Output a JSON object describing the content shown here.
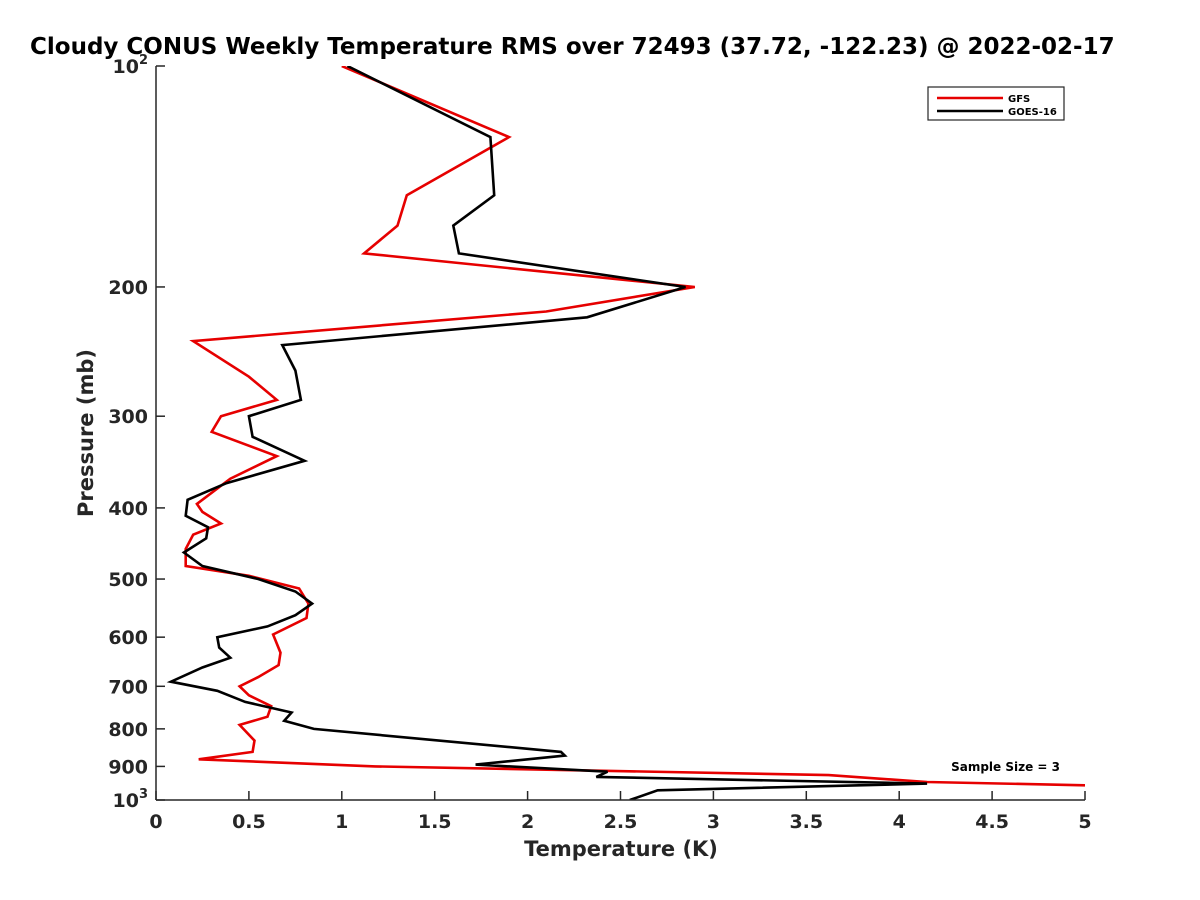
{
  "chart_data": {
    "type": "line",
    "title": "Cloudy CONUS Weekly Temperature RMS over 72493 (37.72, -122.23) @ 2022-02-17",
    "xlabel": "Temperature (K)",
    "ylabel": "Pressure (mb)",
    "xlim": [
      0,
      5
    ],
    "ylim": [
      100,
      1000
    ],
    "yscale": "log",
    "y_reversed": true,
    "grid": false,
    "legend_position": "top-right",
    "x_ticks": [
      0,
      0.5,
      1,
      1.5,
      2,
      2.5,
      3,
      3.5,
      4,
      4.5,
      5
    ],
    "x_tick_labels": [
      "0",
      "0.5",
      "1",
      "1.5",
      "2",
      "2.5",
      "3",
      "3.5",
      "4",
      "4.5",
      "5"
    ],
    "y_ticks": [
      100,
      200,
      300,
      400,
      500,
      600,
      700,
      800,
      900,
      1000
    ],
    "y_tick_labels": [
      {
        "base": "10",
        "sup": "2"
      },
      {
        "base": "200",
        "sup": ""
      },
      {
        "base": "300",
        "sup": ""
      },
      {
        "base": "400",
        "sup": ""
      },
      {
        "base": "500",
        "sup": ""
      },
      {
        "base": "600",
        "sup": ""
      },
      {
        "base": "700",
        "sup": ""
      },
      {
        "base": "800",
        "sup": ""
      },
      {
        "base": "900",
        "sup": ""
      },
      {
        "base": "10",
        "sup": "3"
      }
    ],
    "annotation": "Sample Size = 3",
    "series": [
      {
        "name": "GFS",
        "color": "#e60000",
        "points": [
          [
            1.0,
            100
          ],
          [
            1.9,
            125
          ],
          [
            1.35,
            150
          ],
          [
            1.3,
            165
          ],
          [
            1.12,
            180
          ],
          [
            2.9,
            200
          ],
          [
            2.1,
            216
          ],
          [
            0.2,
            237
          ],
          [
            0.5,
            265
          ],
          [
            0.65,
            285
          ],
          [
            0.35,
            300
          ],
          [
            0.3,
            315
          ],
          [
            0.65,
            340
          ],
          [
            0.4,
            365
          ],
          [
            0.22,
            395
          ],
          [
            0.25,
            405
          ],
          [
            0.35,
            420
          ],
          [
            0.2,
            435
          ],
          [
            0.16,
            455
          ],
          [
            0.16,
            480
          ],
          [
            0.5,
            495
          ],
          [
            0.77,
            515
          ],
          [
            0.82,
            540
          ],
          [
            0.81,
            565
          ],
          [
            0.63,
            595
          ],
          [
            0.67,
            630
          ],
          [
            0.66,
            655
          ],
          [
            0.55,
            680
          ],
          [
            0.45,
            700
          ],
          [
            0.5,
            720
          ],
          [
            0.62,
            745
          ],
          [
            0.6,
            770
          ],
          [
            0.45,
            790
          ],
          [
            0.53,
            830
          ],
          [
            0.52,
            860
          ],
          [
            0.23,
            880
          ],
          [
            1.18,
            900
          ],
          [
            3.62,
            925
          ],
          [
            4.15,
            945
          ],
          [
            5.0,
            955
          ]
        ]
      },
      {
        "name": "GOES-16",
        "color": "#000000",
        "points": [
          [
            1.03,
            100
          ],
          [
            1.8,
            125
          ],
          [
            1.82,
            150
          ],
          [
            1.6,
            165
          ],
          [
            1.63,
            180
          ],
          [
            2.85,
            200
          ],
          [
            2.32,
            220
          ],
          [
            0.68,
            240
          ],
          [
            0.75,
            260
          ],
          [
            0.78,
            285
          ],
          [
            0.5,
            300
          ],
          [
            0.52,
            320
          ],
          [
            0.8,
            345
          ],
          [
            0.38,
            370
          ],
          [
            0.17,
            390
          ],
          [
            0.16,
            410
          ],
          [
            0.28,
            425
          ],
          [
            0.27,
            440
          ],
          [
            0.15,
            460
          ],
          [
            0.25,
            480
          ],
          [
            0.55,
            500
          ],
          [
            0.75,
            520
          ],
          [
            0.84,
            540
          ],
          [
            0.75,
            560
          ],
          [
            0.6,
            580
          ],
          [
            0.33,
            600
          ],
          [
            0.34,
            620
          ],
          [
            0.4,
            640
          ],
          [
            0.25,
            660
          ],
          [
            0.08,
            690
          ],
          [
            0.33,
            710
          ],
          [
            0.48,
            735
          ],
          [
            0.73,
            760
          ],
          [
            0.69,
            780
          ],
          [
            0.85,
            800
          ],
          [
            2.18,
            860
          ],
          [
            2.2,
            870
          ],
          [
            1.72,
            895
          ],
          [
            2.43,
            915
          ],
          [
            2.37,
            930
          ],
          [
            4.15,
            950
          ],
          [
            2.7,
            970
          ],
          [
            2.55,
            1000
          ]
        ]
      }
    ]
  }
}
